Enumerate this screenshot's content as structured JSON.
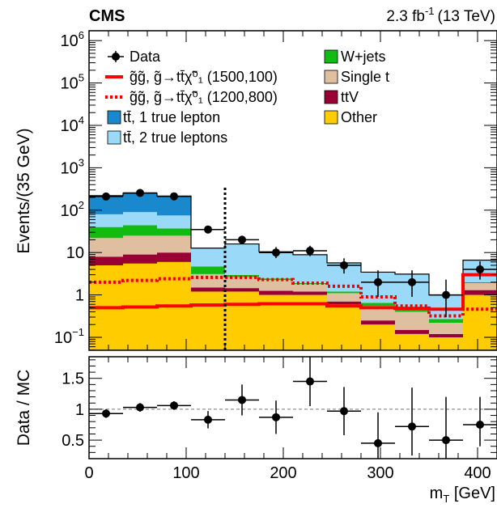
{
  "header": {
    "experiment": "CMS",
    "lumi": "2.3 fb",
    "lumi_exp": "-1",
    "energy": "(13 TeV)"
  },
  "chart_data": [
    {
      "type": "bar",
      "subtype": "stacked-histogram-log",
      "ylabel": "Events/(35 GeV)",
      "xlim": [
        0,
        420
      ],
      "ylim": [
        0.04,
        1000000
      ],
      "yscale": "log",
      "bin_edges": [
        0,
        35,
        70,
        105,
        140,
        175,
        210,
        245,
        280,
        315,
        350,
        385,
        420
      ],
      "stack_order": [
        "Other",
        "ttV",
        "Single t",
        "W+jets",
        "tt-2",
        "tt-1"
      ],
      "stack": [
        {
          "key": "Other",
          "label": "Other",
          "color": "#ffcc00",
          "values": [
            5,
            5.5,
            6,
            1.2,
            1.2,
            1.0,
            1.0,
            0.6,
            0.2,
            0.12,
            0.1,
            1.0
          ]
        },
        {
          "key": "ttV",
          "label": "ttV",
          "color": "#990033",
          "values": [
            3,
            3.5,
            4,
            0.3,
            0.25,
            0.25,
            0.2,
            0.1,
            0.05,
            0.03,
            0.02,
            0.3
          ]
        },
        {
          "key": "Single t",
          "label": "Single t",
          "color": "#dfbf9f",
          "values": [
            14,
            16,
            15,
            1.6,
            1.2,
            1.0,
            0.6,
            0.4,
            0.3,
            0.25,
            0.1,
            0.6
          ]
        },
        {
          "key": "W+jets",
          "label": "W+jets",
          "color": "#11bb11",
          "values": [
            18,
            19,
            12,
            1.6,
            0.3,
            0.2,
            0.1,
            0.1,
            0.1,
            0.1,
            0.05,
            0.1
          ]
        },
        {
          "key": "tt-2",
          "label": "2 true leptons",
          "color": "#9ad9f7",
          "values": [
            40,
            46,
            38,
            8,
            13,
            8,
            7,
            4.5,
            2.8,
            2.6,
            0.73,
            4.6
          ]
        },
        {
          "key": "tt-1",
          "label": "1 true lepton",
          "color": "#1a88cc",
          "values": [
            140,
            160,
            140,
            0,
            0,
            0,
            0,
            0,
            0,
            0,
            0,
            0
          ]
        }
      ],
      "data_points": [
        {
          "x": 17.5,
          "y": 210,
          "ylo": 195,
          "yhi": 226
        },
        {
          "x": 52.5,
          "y": 255,
          "ylo": 238,
          "yhi": 272
        },
        {
          "x": 87.5,
          "y": 212,
          "ylo": 197,
          "yhi": 228
        },
        {
          "x": 122.5,
          "y": 35,
          "ylo": 29,
          "yhi": 42
        },
        {
          "x": 157.5,
          "y": 20,
          "ylo": 16,
          "yhi": 25
        },
        {
          "x": 192.5,
          "y": 10,
          "ylo": 7.4,
          "yhi": 13.5
        },
        {
          "x": 227.5,
          "y": 11,
          "ylo": 8.2,
          "yhi": 14.5
        },
        {
          "x": 262.5,
          "y": 5,
          "ylo": 3.2,
          "yhi": 7.3
        },
        {
          "x": 297.5,
          "y": 2,
          "ylo": 0.9,
          "yhi": 3.8
        },
        {
          "x": 332.5,
          "y": 2,
          "ylo": 0.9,
          "yhi": 3.8
        },
        {
          "x": 367.5,
          "y": 1,
          "ylo": 0.3,
          "yhi": 2.3
        },
        {
          "x": 402.5,
          "y": 4,
          "ylo": 2.3,
          "yhi": 6.2
        }
      ],
      "signal_1500_100": {
        "color": "#ff0000",
        "style": "solid",
        "values": [
          0.5,
          0.52,
          0.55,
          0.58,
          0.6,
          0.62,
          0.62,
          0.55,
          0.5,
          0.48,
          0.46,
          3.0
        ]
      },
      "signal_1200_800": {
        "color": "#ee0000",
        "style": "dotted",
        "values": [
          2.0,
          2.2,
          2.4,
          2.6,
          2.6,
          2.3,
          1.9,
          1.6,
          0.9,
          0.55,
          0.32,
          0.46
        ]
      },
      "cut_line_x": 140,
      "legend": {
        "data": "Data",
        "sig1": "g̃g̃, g̃→tt̄χ̃⁰₁ (1500,100)",
        "sig2": "g̃g̃, g̃→tt̄χ̃⁰₁ (1200,800)",
        "tt1": "tt̄, 1 true lepton",
        "tt2": "tt̄, 2 true leptons",
        "wjets": "W+jets",
        "singlet": "Single t",
        "ttv": "ttV",
        "other": "Other"
      },
      "ytick_labels_main": [
        "10^6",
        "10^5",
        "10^4",
        "10^3",
        "10^2",
        "10",
        "1",
        "10^-1"
      ]
    },
    {
      "type": "scatter",
      "subtype": "ratio",
      "ylabel": "Data / MC",
      "xlabel": "m_T [GeV]",
      "xlim": [
        0,
        420
      ],
      "ylim": [
        0.2,
        1.85
      ],
      "reference_line": 1.0,
      "yticks": [
        0.5,
        1,
        1.5
      ],
      "ytick_labels": [
        "0.5",
        "1",
        "1.5"
      ],
      "xticks": [
        0,
        100,
        200,
        300,
        400
      ],
      "xtick_labels": [
        "0",
        "100",
        "200",
        "300",
        "400"
      ],
      "points": [
        {
          "x": 17.5,
          "y": 0.93,
          "ylo": 0.86,
          "yhi": 1.0
        },
        {
          "x": 52.5,
          "y": 1.03,
          "ylo": 0.96,
          "yhi": 1.1
        },
        {
          "x": 87.5,
          "y": 1.06,
          "ylo": 0.99,
          "yhi": 1.13
        },
        {
          "x": 122.5,
          "y": 0.83,
          "ylo": 0.69,
          "yhi": 0.97
        },
        {
          "x": 157.5,
          "y": 1.15,
          "ylo": 0.9,
          "yhi": 1.4
        },
        {
          "x": 192.5,
          "y": 0.87,
          "ylo": 0.6,
          "yhi": 1.14
        },
        {
          "x": 227.5,
          "y": 1.45,
          "ylo": 1.05,
          "yhi": 1.85
        },
        {
          "x": 262.5,
          "y": 0.97,
          "ylo": 0.58,
          "yhi": 1.36
        },
        {
          "x": 297.5,
          "y": 0.45,
          "ylo": 0.2,
          "yhi": 0.95
        },
        {
          "x": 332.5,
          "y": 0.72,
          "ylo": 0.25,
          "yhi": 1.35
        },
        {
          "x": 367.5,
          "y": 0.5,
          "ylo": 0.2,
          "yhi": 1.2
        },
        {
          "x": 402.5,
          "y": 0.75,
          "ylo": 0.4,
          "yhi": 1.2
        }
      ]
    }
  ]
}
